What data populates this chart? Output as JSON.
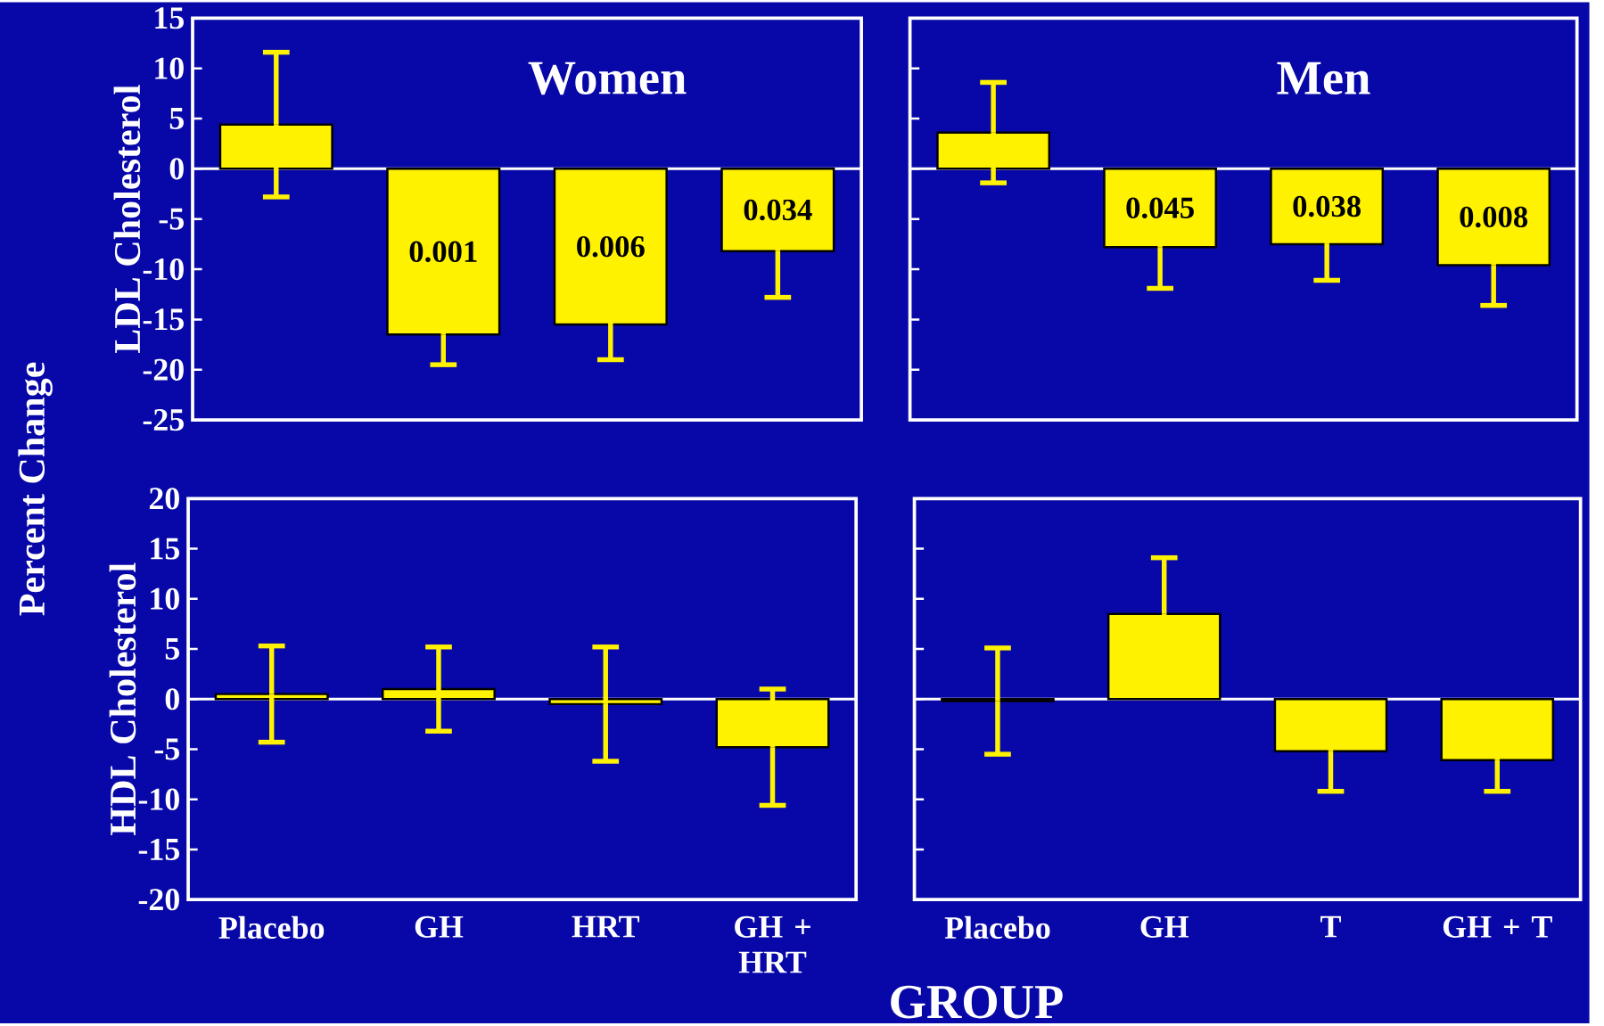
{
  "chart_data": [
    {
      "type": "bar",
      "title": "Women",
      "ylabel": "LDL Cholesterol",
      "categories": [
        "Placebo",
        "GH",
        "HRT",
        "GH + HRT"
      ],
      "values": [
        4.4,
        -16.5,
        -15.5,
        -8.2
      ],
      "errors": [
        7.2,
        3,
        3.5,
        4.6
      ],
      "color": "#fff200",
      "ylim": [
        -25,
        15
      ],
      "yticks": [
        -25,
        -20,
        -15,
        -10,
        -5,
        0,
        5,
        10,
        15
      ],
      "tick_labels": "y",
      "ref_lines": [
        {
          "axis": "y",
          "value": 0,
          "color": "#ffffff"
        }
      ],
      "annotations": [
        {
          "text": "0.001",
          "x": "GH",
          "y": -16.5
        },
        {
          "text": "0.006",
          "x": "HRT",
          "y": -15.5
        },
        {
          "text": "0.034",
          "x": "GH + HRT",
          "y": -8.2
        }
      ]
    },
    {
      "type": "bar",
      "title": "Men",
      "categories": [
        "Placebo",
        "GH",
        "T",
        "GH + T"
      ],
      "values": [
        3.6,
        -7.8,
        -7.5,
        -9.6
      ],
      "errors": [
        5,
        4.1,
        3.6,
        4
      ],
      "color": "#fff200",
      "ylim": [
        -25,
        15
      ],
      "yticks": [
        -25,
        -20,
        -15,
        -10,
        -5,
        0,
        5,
        10,
        15
      ],
      "tick_labels": false,
      "ref_lines": [
        {
          "axis": "y",
          "value": 0,
          "color": "#ffffff"
        }
      ],
      "annotations": [
        {
          "text": "0.045",
          "x": "GH",
          "y": -7.8
        },
        {
          "text": "0.038",
          "x": "T",
          "y": -7.5
        },
        {
          "text": "0.008",
          "x": "GH + T",
          "y": -9.6
        }
      ]
    },
    {
      "type": "bar",
      "ylabel": "HDL Cholesterol",
      "categories": [
        "Placebo",
        "GH",
        "HRT",
        "GH + HRT"
      ],
      "values": [
        0.5,
        1.0,
        -0.5,
        -4.8
      ],
      "errors": [
        4.8,
        4.2,
        5.7,
        5.8
      ],
      "color": "#fff200",
      "ylim": [
        -20,
        20
      ],
      "yticks": [
        -20,
        -15,
        -10,
        -5,
        0,
        5,
        10,
        15,
        20
      ],
      "ref_lines": [
        {
          "axis": "y",
          "value": 0,
          "color": "#ffffff"
        }
      ],
      "annotations": [
        "Percent Change",
        "GROUP"
      ]
    },
    {
      "type": "bar",
      "categories": [
        "Placebo",
        "GH",
        "T",
        "GH + T"
      ],
      "values": [
        -0.2,
        8.5,
        -5.2,
        -6.1
      ],
      "errors": [
        5.3,
        5.6,
        4,
        3.1
      ],
      "color": "#fff200",
      "ylim": [
        -20,
        20
      ],
      "yticks": [
        -20,
        -15,
        -10,
        -5,
        0,
        5,
        10,
        15,
        20
      ],
      "tick_labels": "x",
      "ref_lines": [
        {
          "axis": "y",
          "value": 0,
          "color": "#ffffff"
        }
      ]
    }
  ]
}
